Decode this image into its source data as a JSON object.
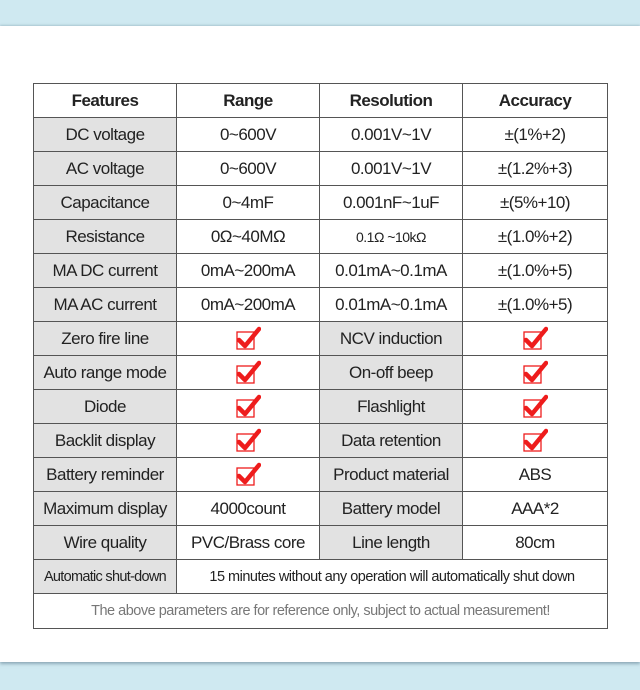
{
  "colors": {
    "check": "#ee1c1c",
    "gray_cell": "#e2e2e2",
    "background": "#cfe9f1"
  },
  "header": [
    "Features",
    "Range",
    "Resolution",
    "Accuracy"
  ],
  "spec_rows": [
    {
      "feature": "DC voltage",
      "range": "0~600V",
      "resolution": "0.001V~1V",
      "accuracy": "±(1%+2)"
    },
    {
      "feature": "AC voltage",
      "range": "0~600V",
      "resolution": "0.001V~1V",
      "accuracy": "±(1.2%+3)"
    },
    {
      "feature": "Capacitance",
      "range": "0~4mF",
      "resolution": "0.001nF~1uF",
      "accuracy": "±(5%+10)"
    },
    {
      "feature": "Resistance",
      "range": "0Ω~40MΩ",
      "resolution": "0.1Ω ~10kΩ",
      "accuracy": "±(1.0%+2)"
    },
    {
      "feature": "MA DC current",
      "range": "0mA~200mA",
      "resolution": "0.01mA~0.1mA",
      "accuracy": "±(1.0%+5)"
    },
    {
      "feature": "MA AC current",
      "range": "0mA~200mA",
      "resolution": "0.01mA~0.1mA",
      "accuracy": "±(1.0%+5)"
    }
  ],
  "feature_rows": [
    {
      "a": "Zero fire line",
      "b_check": true,
      "c": "NCV induction",
      "d_check": true
    },
    {
      "a": "Auto range mode",
      "b_check": true,
      "c": "On-off beep",
      "d_check": true
    },
    {
      "a": "Diode",
      "b_check": true,
      "c": "Flashlight",
      "d_check": true
    },
    {
      "a": "Backlit display",
      "b_check": true,
      "c": "Data retention",
      "d_check": true
    },
    {
      "a": "Battery reminder",
      "b_check": true,
      "c": "Product material",
      "d": "ABS"
    },
    {
      "a": "Maximum display",
      "b": "4000count",
      "c": "Battery model",
      "d": "AAA*2"
    },
    {
      "a": "Wire quality",
      "b": "PVC/Brass core",
      "c": "Line length",
      "d": "80cm"
    }
  ],
  "shutdown": {
    "label": "Automatic shut-down",
    "value": "15 minutes without any operation will automatically shut down"
  },
  "note": "The above parameters are for reference only, subject to actual measurement!"
}
